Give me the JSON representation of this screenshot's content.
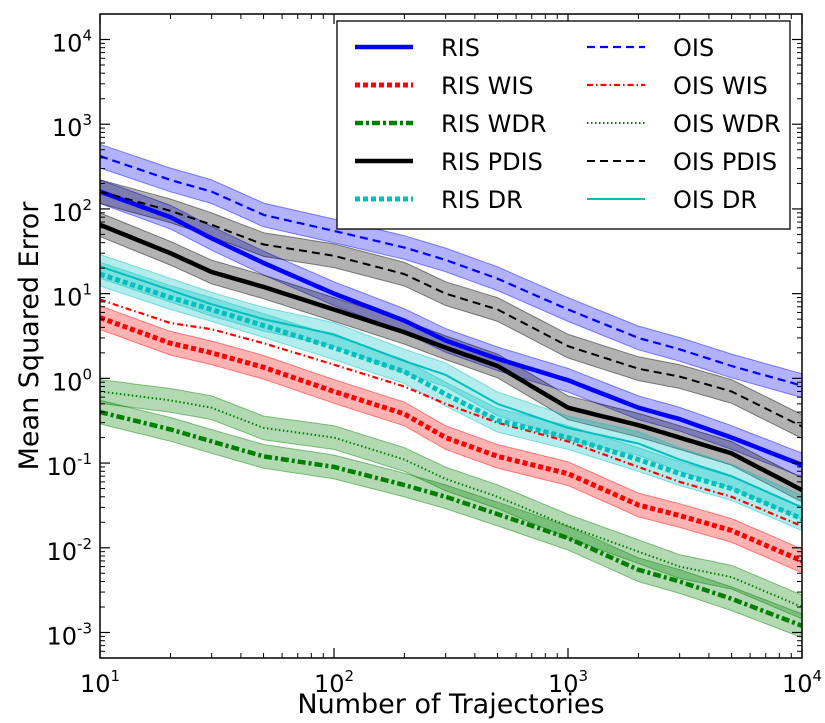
{
  "chart_data": {
    "type": "line",
    "xlabel": "Number of Trajectories",
    "ylabel": "Mean Squared Error",
    "xscale": "log",
    "yscale": "log",
    "xlim": [
      10,
      10000
    ],
    "ylim": [
      0.0005,
      20000
    ],
    "x_ticks": [
      {
        "base": "10",
        "exp": "1",
        "value": 10
      },
      {
        "base": "10",
        "exp": "2",
        "value": 100
      },
      {
        "base": "10",
        "exp": "3",
        "value": 1000
      },
      {
        "base": "10",
        "exp": "4",
        "value": 10000
      }
    ],
    "y_ticks": [
      {
        "base": "10",
        "exp": "-3",
        "value": 0.001
      },
      {
        "base": "10",
        "exp": "-2",
        "value": 0.01
      },
      {
        "base": "10",
        "exp": "-1",
        "value": 0.1
      },
      {
        "base": "10",
        "exp": "0",
        "value": 1
      },
      {
        "base": "10",
        "exp": "1",
        "value": 10
      },
      {
        "base": "10",
        "exp": "2",
        "value": 100
      },
      {
        "base": "10",
        "exp": "3",
        "value": 1000
      },
      {
        "base": "10",
        "exp": "4",
        "value": 10000
      }
    ],
    "grid": false,
    "legend_position": "top-right",
    "x": [
      10,
      20,
      30,
      50,
      100,
      200,
      300,
      500,
      1000,
      2000,
      3000,
      5000,
      10000
    ],
    "series": [
      {
        "name": "RIS",
        "color": "#0000ff",
        "dash": "solid",
        "width": 4.5,
        "band": true,
        "values": [
          160,
          80,
          45,
          23,
          10,
          4.8,
          2.8,
          1.7,
          0.95,
          0.45,
          0.33,
          0.2,
          0.095
        ]
      },
      {
        "name": "OIS",
        "color": "#0000ff",
        "dash": "dashed",
        "width": 2.2,
        "band": true,
        "values": [
          420,
          220,
          160,
          85,
          55,
          35,
          25,
          15,
          6.5,
          3.0,
          2.2,
          1.4,
          0.82
        ]
      },
      {
        "name": "RIS WIS",
        "color": "#ff0000",
        "dash": "dotted-thick",
        "width": 5,
        "band": true,
        "values": [
          5.2,
          2.6,
          2.0,
          1.35,
          0.7,
          0.38,
          0.2,
          0.12,
          0.075,
          0.032,
          0.024,
          0.016,
          0.007
        ]
      },
      {
        "name": "OIS WIS",
        "color": "#ff0000",
        "dash": "dashdot",
        "width": 2.2,
        "band": false,
        "values": [
          8.5,
          4.5,
          3.8,
          2.6,
          1.45,
          0.8,
          0.5,
          0.3,
          0.18,
          0.09,
          0.06,
          0.04,
          0.018
        ]
      },
      {
        "name": "RIS WDR",
        "color": "#008000",
        "dash": "dashdot-thick",
        "width": 4.5,
        "band": true,
        "values": [
          0.4,
          0.25,
          0.18,
          0.12,
          0.09,
          0.055,
          0.04,
          0.025,
          0.013,
          0.0055,
          0.004,
          0.0025,
          0.0012
        ]
      },
      {
        "name": "OIS WDR",
        "color": "#008000",
        "dash": "dotted",
        "width": 2,
        "band": true,
        "values": [
          0.7,
          0.55,
          0.45,
          0.26,
          0.2,
          0.11,
          0.065,
          0.04,
          0.018,
          0.009,
          0.006,
          0.0045,
          0.002
        ]
      },
      {
        "name": "RIS PDIS",
        "color": "#000000",
        "dash": "solid",
        "width": 4.5,
        "band": true,
        "values": [
          65,
          30,
          18,
          12,
          6.5,
          3.5,
          2.3,
          1.4,
          0.45,
          0.28,
          0.2,
          0.13,
          0.048
        ]
      },
      {
        "name": "OIS PDIS",
        "color": "#000000",
        "dash": "dashed",
        "width": 2,
        "band": true,
        "values": [
          160,
          95,
          65,
          38,
          28,
          17,
          10,
          6.5,
          2.4,
          1.3,
          1.05,
          0.7,
          0.27
        ]
      },
      {
        "name": "RIS DR",
        "color": "#00bfbf",
        "dash": "dotted-thick",
        "width": 5,
        "band": true,
        "values": [
          17,
          9,
          6.5,
          4.2,
          2.3,
          1.2,
          0.65,
          0.32,
          0.2,
          0.11,
          0.075,
          0.05,
          0.022
        ]
      },
      {
        "name": "OIS DR",
        "color": "#00bfbf",
        "dash": "solid",
        "width": 2,
        "band": true,
        "values": [
          21,
          11,
          7.5,
          5.0,
          3.3,
          1.6,
          1.1,
          0.5,
          0.26,
          0.17,
          0.11,
          0.07,
          0.03
        ]
      }
    ],
    "legend_order": [
      "RIS",
      "OIS",
      "RIS WIS",
      "OIS WIS",
      "RIS WDR",
      "OIS WDR",
      "RIS PDIS",
      "OIS PDIS",
      "RIS DR",
      "OIS DR"
    ]
  }
}
